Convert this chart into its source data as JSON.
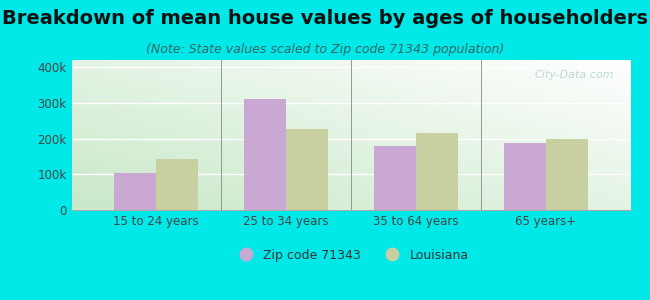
{
  "title": "Breakdown of mean house values by ages of householders",
  "subtitle": "(Note: State values scaled to Zip code 71343 population)",
  "categories": [
    "15 to 24 years",
    "25 to 34 years",
    "35 to 64 years",
    "65 years+"
  ],
  "zip_values": [
    105000,
    310000,
    178000,
    188000
  ],
  "la_values": [
    143000,
    228000,
    215000,
    198000
  ],
  "zip_color": "#c9a8d4",
  "la_color": "#c8cfa0",
  "ylim": [
    0,
    420000
  ],
  "yticks": [
    0,
    100000,
    200000,
    300000,
    400000
  ],
  "ytick_labels": [
    "0",
    "100k",
    "200k",
    "300k",
    "400k"
  ],
  "legend_zip": "Zip code 71343",
  "legend_la": "Louisiana",
  "background_outer": "#00e8e8",
  "background_plot_tl": "#c8e8c8",
  "background_plot_br": "#ffffff",
  "title_fontsize": 14,
  "subtitle_fontsize": 9,
  "bar_width": 0.32,
  "watermark": "City-Data.com"
}
